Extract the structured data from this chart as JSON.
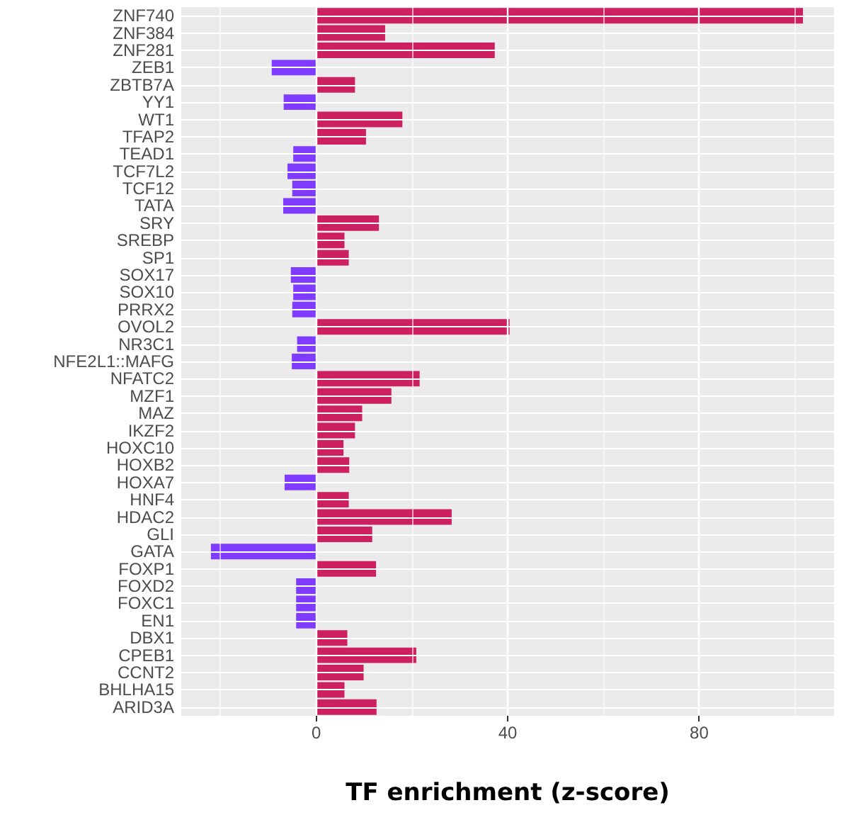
{
  "chart_data": {
    "type": "bar",
    "orientation": "horizontal",
    "xlabel": "TF enrichment (z-score)",
    "categories": [
      "ZNF740",
      "ZNF384",
      "ZNF281",
      "ZEB1",
      "ZBTB7A",
      "YY1",
      "WT1",
      "TFAP2",
      "TEAD1",
      "TCF7L2",
      "TCF12",
      "TATA",
      "SRY",
      "SREBP",
      "SP1",
      "SOX17",
      "SOX10",
      "PRRX2",
      "OVOL2",
      "NR3C1",
      "NFE2L1::MAFG",
      "NFATC2",
      "MZF1",
      "MAZ",
      "IKZF2",
      "HOXC10",
      "HOXB2",
      "HOXA7",
      "HNF4",
      "HDAC2",
      "GLI",
      "GATA",
      "FOXP1",
      "FOXD2",
      "FOXC1",
      "EN1",
      "DBX1",
      "CPEB1",
      "CCNT2",
      "BHLHA15",
      "ARID3A"
    ],
    "values": [
      101.7,
      14.4,
      37.3,
      -9.3,
      8.1,
      -6.8,
      18.0,
      10.4,
      -4.8,
      -6.0,
      -5.0,
      -6.9,
      13.1,
      5.9,
      6.8,
      -5.3,
      -4.8,
      -5.0,
      40.4,
      -4.0,
      -5.1,
      21.6,
      15.7,
      9.6,
      8.1,
      5.7,
      6.9,
      -6.6,
      6.8,
      28.3,
      11.7,
      -22.0,
      12.5,
      -4.2,
      -4.2,
      -4.2,
      6.5,
      20.9,
      9.9,
      5.9,
      12.6
    ],
    "colors": [
      "#cc2060",
      "#cc2060",
      "#cc2060",
      "#7f3bff",
      "#cc2060",
      "#7f3bff",
      "#cc2060",
      "#cc2060",
      "#7f3bff",
      "#7f3bff",
      "#7f3bff",
      "#7f3bff",
      "#cc2060",
      "#cc2060",
      "#cc2060",
      "#7f3bff",
      "#7f3bff",
      "#7f3bff",
      "#cc2060",
      "#7f3bff",
      "#7f3bff",
      "#cc2060",
      "#cc2060",
      "#cc2060",
      "#cc2060",
      "#cc2060",
      "#cc2060",
      "#7f3bff",
      "#cc2060",
      "#cc2060",
      "#cc2060",
      "#7f3bff",
      "#cc2060",
      "#7f3bff",
      "#7f3bff",
      "#7f3bff",
      "#cc2060",
      "#cc2060",
      "#cc2060",
      "#cc2060",
      "#cc2060"
    ],
    "xlim": [
      -28.2,
      108.2
    ],
    "xticks": [
      0,
      40,
      80
    ],
    "grid": true
  }
}
